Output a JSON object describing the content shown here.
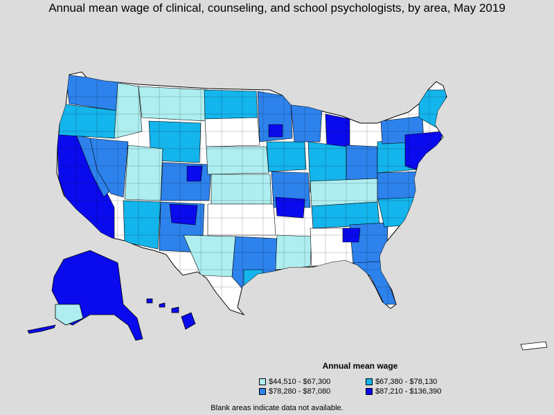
{
  "title": "Annual mean wage of clinical, counseling, and school psychologists, by area, May 2019",
  "legend": {
    "title": "Annual mean wage",
    "items": [
      {
        "label": "$44,510 - $67,300",
        "color": "#aeeef0"
      },
      {
        "label": "$67,380 - $78,130",
        "color": "#14b4ec"
      },
      {
        "label": "$78,280 - $87,080",
        "color": "#2d82ec"
      },
      {
        "label": "$87,210 - $136,390",
        "color": "#0a0aee"
      }
    ]
  },
  "footnote": "Blank areas indicate data not available.",
  "colors": {
    "background": "#dcdcdc",
    "no_data": "#ffffff",
    "border": "#000000"
  }
}
